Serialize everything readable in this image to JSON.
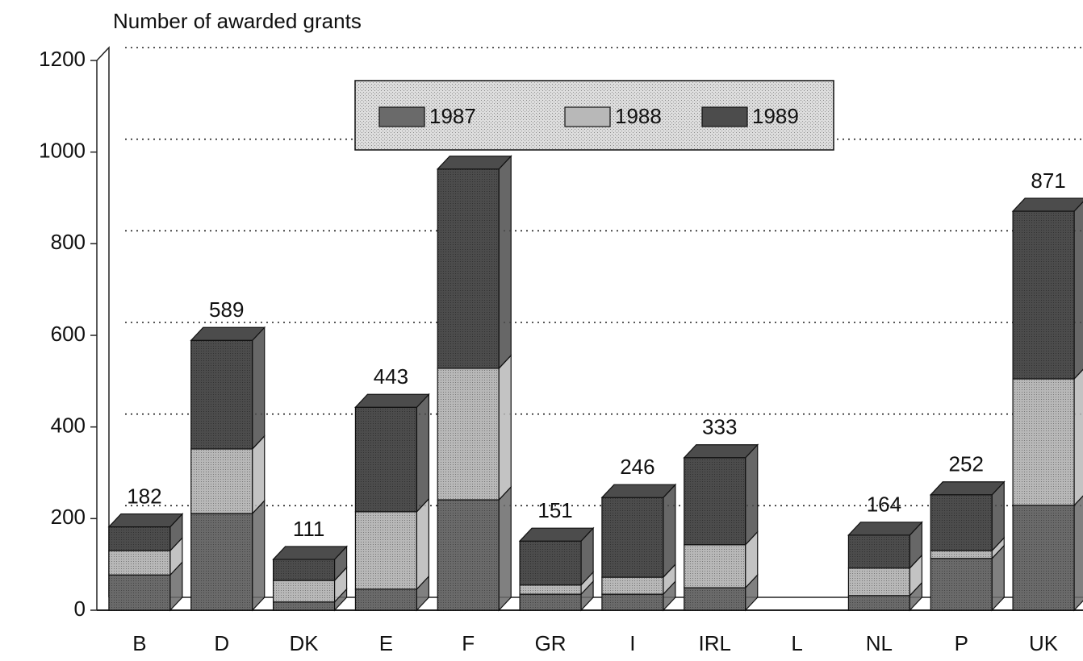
{
  "chart_data": {
    "type": "bar3d_stacked",
    "title": "Number of awarded grants",
    "categories": [
      "B",
      "D",
      "DK",
      "E",
      "F",
      "GR",
      "I",
      "IRL",
      "L",
      "NL",
      "P",
      "UK"
    ],
    "series": [
      {
        "name": "1987",
        "color": "#6a6a6a",
        "values": [
          77,
          211,
          18,
          46,
          241,
          35,
          35,
          49,
          null,
          32,
          113,
          229
        ]
      },
      {
        "name": "1988",
        "color": "#b8b8b8",
        "values": [
          53,
          141,
          47,
          169,
          287,
          20,
          37,
          94,
          null,
          60,
          17,
          276
        ]
      },
      {
        "name": "1989",
        "color": "#4c4c4c",
        "values": [
          52,
          237,
          46,
          228,
          435,
          96,
          174,
          190,
          null,
          72,
          122,
          366
        ]
      }
    ],
    "total_labels": [
      182,
      589,
      111,
      443,
      null,
      151,
      246,
      333,
      null,
      164,
      252,
      871
    ],
    "ylim": [
      0,
      1200
    ],
    "yticks": [
      0,
      200,
      400,
      600,
      800,
      1000,
      1200
    ],
    "grid": true
  }
}
